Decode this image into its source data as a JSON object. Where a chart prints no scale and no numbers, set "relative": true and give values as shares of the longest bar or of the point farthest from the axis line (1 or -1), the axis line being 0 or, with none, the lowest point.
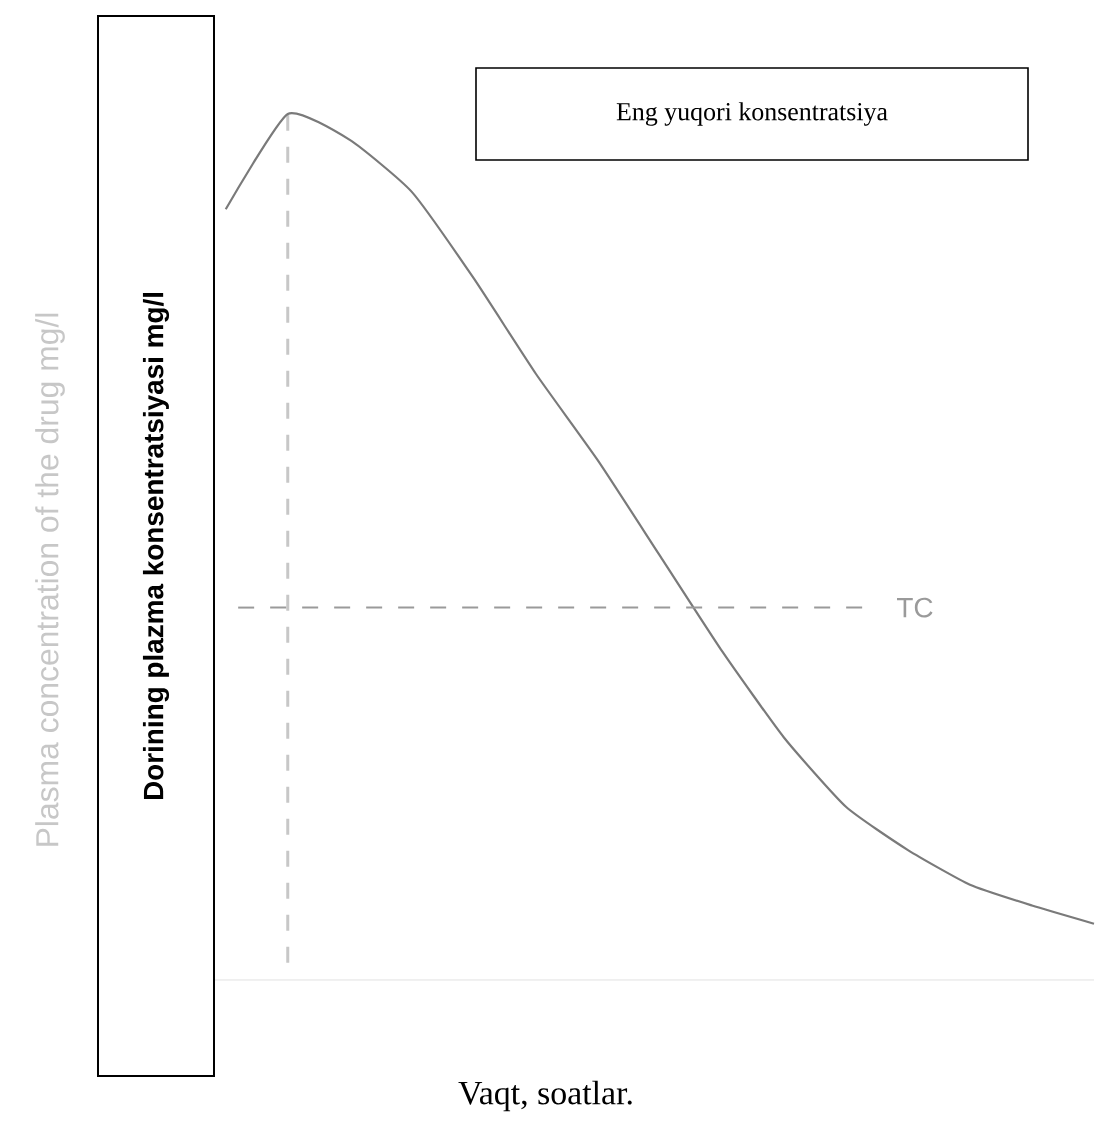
{
  "chart_data": {
    "type": "line",
    "relative": true,
    "xlabel": "Vaqt, soatlar.",
    "ylabel": "Dorining plazma konsentratsiyasi  mg/l",
    "categories": [
      null,
      null,
      null,
      null,
      null,
      null,
      null,
      null,
      null,
      null,
      null,
      null,
      null,
      null,
      null
    ],
    "series": [
      {
        "color": "#7a7a7a",
        "values": [
          0.89,
          1.0,
          0.97,
          0.91,
          0.81,
          0.7,
          0.6,
          0.49,
          0.38,
          0.28,
          0.2,
          0.15,
          0.11,
          0.086,
          0.065
        ]
      }
    ],
    "ref_lines": [
      {
        "axis": "y",
        "value": 0.43,
        "label": "TC",
        "color": "#9a9a9a",
        "line_style": "dashed"
      }
    ],
    "annotations": [
      "Eng yuqori konsentratsiya",
      "Plasma concentration of the drug mg/l"
    ],
    "marker": "none",
    "line_style": "solid"
  }
}
